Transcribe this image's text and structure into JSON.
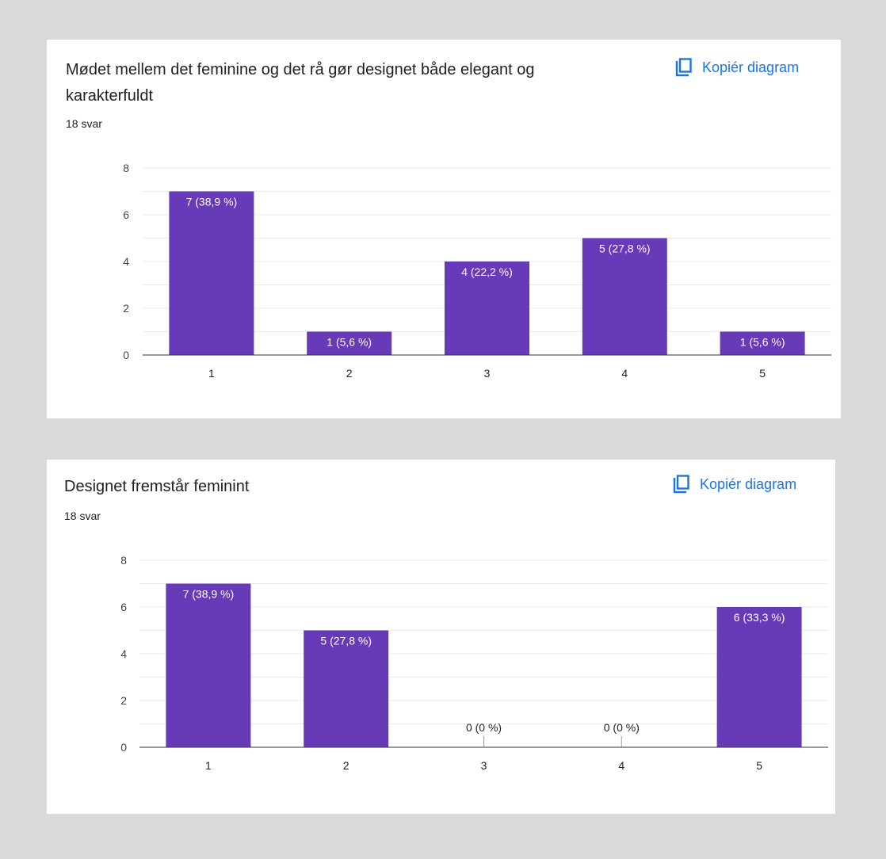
{
  "copy_label": "Kopiér diagram",
  "colors": {
    "bar": "#673ab7",
    "link": "#1a73e8",
    "background": "#d9d9d9"
  },
  "icons": {
    "copy": "copy-chart-icon"
  },
  "cards": [
    {
      "title": "Mødet mellem det feminine og det rå gør designet både elegant og karakterfuldt",
      "responses": "18 svar",
      "chart_data": {
        "type": "bar",
        "categories": [
          "1",
          "2",
          "3",
          "4",
          "5"
        ],
        "values": [
          7,
          1,
          4,
          5,
          1
        ],
        "data_labels": [
          "7 (38,9 %)",
          "1 (5,6 %)",
          "4 (22,2 %)",
          "5 (27,8 %)",
          "1 (5,6 %)"
        ],
        "ylim": [
          0,
          8
        ],
        "yticks": [
          0,
          2,
          4,
          6,
          8
        ],
        "grid": true
      }
    },
    {
      "title": "Designet fremstår feminint",
      "responses": "18 svar",
      "chart_data": {
        "type": "bar",
        "categories": [
          "1",
          "2",
          "3",
          "4",
          "5"
        ],
        "values": [
          7,
          5,
          0,
          0,
          6
        ],
        "data_labels": [
          "7 (38,9 %)",
          "5 (27,8 %)",
          "0 (0 %)",
          "0 (0 %)",
          "6 (33,3 %)"
        ],
        "ylim": [
          0,
          8
        ],
        "yticks": [
          0,
          2,
          4,
          6,
          8
        ],
        "grid": true
      }
    }
  ]
}
